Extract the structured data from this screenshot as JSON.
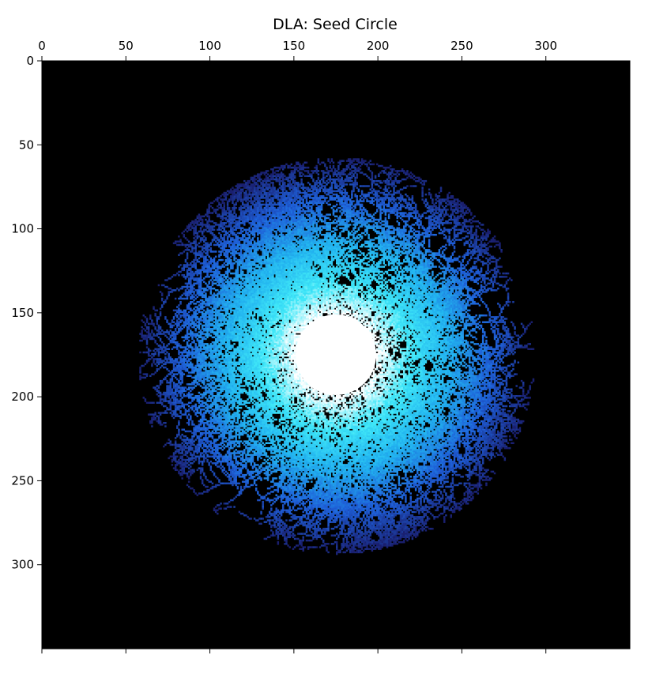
{
  "chart_data": {
    "type": "heatmap",
    "title": "DLA: Seed Circle",
    "xlabel": "",
    "ylabel": "",
    "x_axis_position": "top",
    "y_axis_inverted": true,
    "xlim": [
      0,
      350
    ],
    "ylim": [
      350,
      0
    ],
    "x_ticks": [
      0,
      50,
      100,
      150,
      200,
      250,
      300
    ],
    "y_ticks": [
      0,
      50,
      100,
      150,
      200,
      250,
      300
    ],
    "grid": false,
    "legend": "none",
    "background_color": "#000000",
    "colormap": [
      "#000000",
      "#1a1f6e",
      "#1e5fd8",
      "#22b4f0",
      "#40e8f8",
      "#ffffff"
    ],
    "seed": {
      "shape": "circle",
      "center": [
        175,
        175
      ],
      "radius": 24,
      "color": "#ffffff"
    },
    "cluster": {
      "max_radius": 118,
      "arm_directions_deg": [
        -118,
        -95,
        -68,
        -42,
        -14,
        10,
        35,
        58,
        82,
        106,
        132,
        158,
        180,
        204,
        232
      ],
      "arm_lengths": [
        112,
        72,
        100,
        68,
        108,
        82,
        98,
        78,
        110,
        92,
        104,
        74,
        110,
        96,
        104
      ]
    }
  }
}
